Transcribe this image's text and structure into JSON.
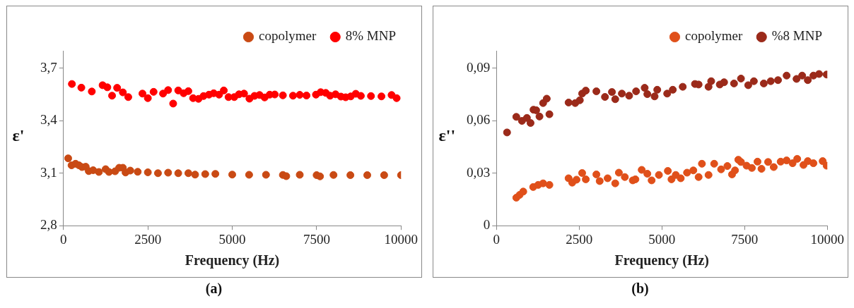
{
  "chart_data": [
    {
      "type": "scatter",
      "xlabel": "Frequency (Hz)",
      "ylabel": "ε'",
      "annotations": [
        "(a)"
      ],
      "xlim": [
        0,
        10000
      ],
      "xticks": [
        0,
        2500,
        5000,
        7500,
        10000
      ],
      "ylim": [
        2.8,
        3.8
      ],
      "yticks": [
        {
          "value": 2.8,
          "label": "2,8"
        },
        {
          "value": 3.1,
          "label": "3,1"
        },
        {
          "value": 3.4,
          "label": "3,4"
        },
        {
          "value": 3.7,
          "label": "3,7"
        }
      ],
      "legend": "top right",
      "marker": "circle",
      "grid": false,
      "series": [
        {
          "name": "copolymer",
          "color": "#c94a14",
          "x": [
            140,
            240,
            360,
            460,
            550,
            660,
            750,
            880,
            1050,
            1250,
            1350,
            1530,
            1650,
            1760,
            1840,
            1980,
            2200,
            2500,
            2800,
            3100,
            3400,
            3700,
            3900,
            4200,
            4500,
            5000,
            5500,
            6000,
            6500,
            6600,
            7000,
            7500,
            7600,
            8000,
            8500,
            9000,
            9500,
            10000
          ],
          "values": [
            3.185,
            3.145,
            3.154,
            3.145,
            3.135,
            3.137,
            3.112,
            3.117,
            3.107,
            3.123,
            3.107,
            3.111,
            3.131,
            3.131,
            3.104,
            3.115,
            3.108,
            3.105,
            3.1,
            3.103,
            3.1,
            3.1,
            3.092,
            3.095,
            3.096,
            3.092,
            3.091,
            3.091,
            3.09,
            3.083,
            3.091,
            3.089,
            3.082,
            3.09,
            3.089,
            3.089,
            3.089,
            3.089
          ]
        },
        {
          "name": "8% MNP",
          "color": "#ff0000",
          "x": [
            250,
            530,
            840,
            1160,
            1300,
            1440,
            1590,
            1760,
            1920,
            2340,
            2500,
            2670,
            2950,
            3100,
            3250,
            3400,
            3560,
            3700,
            3840,
            4000,
            4150,
            4310,
            4450,
            4610,
            4750,
            4890,
            5060,
            5200,
            5350,
            5510,
            5660,
            5810,
            5960,
            6110,
            6260,
            6500,
            6800,
            7000,
            7200,
            7480,
            7620,
            7770,
            7900,
            8060,
            8220,
            8360,
            8510,
            8660,
            8810,
            9110,
            9420,
            9720,
            9870
          ],
          "values": [
            3.61,
            3.589,
            3.567,
            3.603,
            3.591,
            3.543,
            3.588,
            3.562,
            3.535,
            3.555,
            3.529,
            3.565,
            3.555,
            3.575,
            3.498,
            3.573,
            3.557,
            3.569,
            3.529,
            3.525,
            3.541,
            3.549,
            3.557,
            3.549,
            3.573,
            3.535,
            3.535,
            3.551,
            3.555,
            3.526,
            3.542,
            3.547,
            3.533,
            3.549,
            3.55,
            3.545,
            3.543,
            3.548,
            3.544,
            3.549,
            3.563,
            3.559,
            3.543,
            3.551,
            3.538,
            3.534,
            3.539,
            3.554,
            3.542,
            3.541,
            3.539,
            3.547,
            3.529
          ]
        }
      ]
    },
    {
      "type": "scatter",
      "xlabel": "Frequency (Hz)",
      "ylabel": "ε''",
      "annotations": [
        "(b)"
      ],
      "xlim": [
        0,
        10000
      ],
      "xticks": [
        0,
        2500,
        5000,
        7500,
        10000
      ],
      "ylim": [
        0,
        0.1
      ],
      "yticks": [
        0,
        {
          "value": 0.03,
          "label": "0,03"
        },
        {
          "value": 0.06,
          "label": "0,06"
        },
        {
          "value": 0.09,
          "label": "0,09"
        }
      ],
      "legend": "top right",
      "marker": "circle",
      "grid": false,
      "series": [
        {
          "name": "copolymer",
          "color": "#e0501a",
          "x": [
            600,
            700,
            810,
            1110,
            1260,
            1410,
            1600,
            2180,
            2290,
            2420,
            2590,
            2700,
            3020,
            3120,
            3360,
            3590,
            3700,
            3880,
            4120,
            4200,
            4390,
            4560,
            4690,
            4910,
            5180,
            5290,
            5420,
            5570,
            5760,
            5950,
            6110,
            6210,
            6410,
            6580,
            6790,
            6980,
            7120,
            7210,
            7310,
            7390,
            7560,
            7720,
            7890,
            8010,
            8210,
            8380,
            8590,
            8770,
            8950,
            9090,
            9280,
            9410,
            9580,
            9860,
            9980
          ],
          "values": [
            0.016,
            0.0176,
            0.0195,
            0.0221,
            0.0233,
            0.0242,
            0.0233,
            0.0271,
            0.0246,
            0.0263,
            0.0301,
            0.0265,
            0.0293,
            0.0255,
            0.0271,
            0.0242,
            0.0303,
            0.0278,
            0.0259,
            0.0265,
            0.0319,
            0.0297,
            0.0259,
            0.029,
            0.0313,
            0.0265,
            0.029,
            0.0271,
            0.0303,
            0.0316,
            0.0278,
            0.0354,
            0.029,
            0.0354,
            0.0322,
            0.0341,
            0.0293,
            0.0316,
            0.0377,
            0.0364,
            0.0343,
            0.033,
            0.0366,
            0.0325,
            0.0364,
            0.0335,
            0.0366,
            0.0373,
            0.0357,
            0.0382,
            0.0347,
            0.0369,
            0.0357,
            0.0369,
            0.0343
          ]
        },
        {
          "name": "%8 MNP",
          "color": "#9b2a1a",
          "x": [
            320,
            600,
            770,
            920,
            1030,
            1120,
            1200,
            1300,
            1410,
            1520,
            1600,
            2180,
            2380,
            2520,
            2590,
            2700,
            3020,
            3280,
            3490,
            3590,
            3790,
            4010,
            4220,
            4480,
            4560,
            4780,
            4860,
            5160,
            5330,
            5630,
            6000,
            6110,
            6410,
            6490,
            6750,
            6880,
            7180,
            7390,
            7610,
            7780,
            8080,
            8290,
            8510,
            8770,
            9070,
            9240,
            9410,
            9580,
            9750,
            9980
          ],
          "values": [
            0.0533,
            0.0622,
            0.0599,
            0.0616,
            0.0587,
            0.0663,
            0.066,
            0.0624,
            0.0701,
            0.0726,
            0.0637,
            0.0704,
            0.0701,
            0.0717,
            0.0755,
            0.0772,
            0.0768,
            0.0736,
            0.0764,
            0.0723,
            0.0755,
            0.0743,
            0.0768,
            0.0788,
            0.0752,
            0.0739,
            0.0777,
            0.0755,
            0.0777,
            0.0794,
            0.081,
            0.0807,
            0.0794,
            0.0826,
            0.0807,
            0.082,
            0.0813,
            0.0841,
            0.0803,
            0.0826,
            0.0813,
            0.0826,
            0.0832,
            0.0858,
            0.0839,
            0.0858,
            0.0832,
            0.0858,
            0.0867,
            0.0864
          ]
        }
      ]
    }
  ]
}
